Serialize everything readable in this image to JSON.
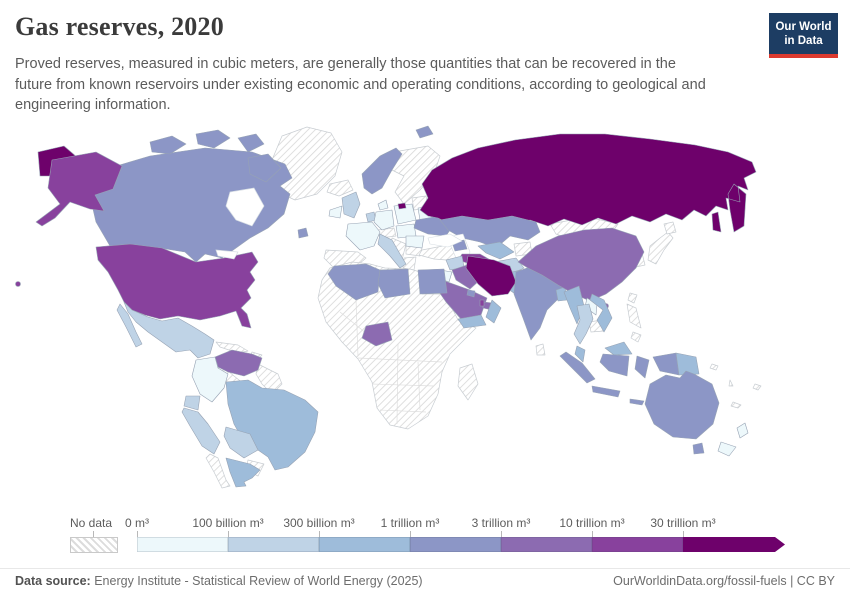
{
  "header": {
    "title": "Gas reserves, 2020",
    "subtitle": "Proved reserves, measured in cubic meters, are generally those quantities that can be recovered in the future from known reservoirs under existing economic and operating conditions, according to geological and engineering information.",
    "logo": {
      "line1": "Our World",
      "line2": "in Data",
      "bg": "#1d3d63",
      "stripe": "#dc3a2f"
    }
  },
  "legend": {
    "no_data_label": "No data",
    "bins": [
      {
        "label": "0 m³",
        "color": "#edf8fb"
      },
      {
        "label": "100 billion m³",
        "color": "#bfd3e6"
      },
      {
        "label": "300 billion m³",
        "color": "#9ebcda"
      },
      {
        "label": "1 trillion m³",
        "color": "#8c96c6"
      },
      {
        "label": "3 trillion m³",
        "color": "#8c6bb1"
      },
      {
        "label": "10 trillion m³",
        "color": "#88419d"
      },
      {
        "label": "30 trillion m³",
        "color": "#6e016b"
      }
    ]
  },
  "footer": {
    "source_label": "Data source:",
    "source_text": " Energy Institute - Statistical Review of World Energy (2025)",
    "right_text": "OurWorldinData.org/fossil-fuels | CC BY"
  },
  "chart_data": {
    "type": "choropleth-map",
    "title": "Gas reserves, 2020",
    "unit": "cubic meters",
    "no_data_style": "hatched",
    "bin_thresholds": [
      "0 m³",
      "100 billion m³",
      "300 billion m³",
      "1 trillion m³",
      "3 trillion m³",
      "10 trillion m³",
      "30 trillion m³"
    ],
    "countries": [
      {
        "id": "russia",
        "name": "Russia",
        "bin": 6
      },
      {
        "id": "iran",
        "name": "Iran",
        "bin": 6
      },
      {
        "id": "usa",
        "name": "United States",
        "bin": 5
      },
      {
        "id": "turkmenistan",
        "name": "Turkmenistan",
        "bin": 5
      },
      {
        "id": "qatar",
        "name": "Qatar",
        "bin": 5
      },
      {
        "id": "venezuela",
        "name": "Venezuela",
        "bin": 4
      },
      {
        "id": "china",
        "name": "China",
        "bin": 4
      },
      {
        "id": "saudi-arabia",
        "name": "Saudi Arabia",
        "bin": 4
      },
      {
        "id": "iraq",
        "name": "Iraq",
        "bin": 4
      },
      {
        "id": "uae",
        "name": "United Arab Emirates",
        "bin": 4
      },
      {
        "id": "nigeria",
        "name": "Nigeria",
        "bin": 4
      },
      {
        "id": "canada",
        "name": "Canada",
        "bin": 3
      },
      {
        "id": "norway",
        "name": "Norway",
        "bin": 3
      },
      {
        "id": "ukraine",
        "name": "Ukraine",
        "bin": 3
      },
      {
        "id": "kazakhstan",
        "name": "Kazakhstan",
        "bin": 3
      },
      {
        "id": "azerbaijan",
        "name": "Azerbaijan",
        "bin": 3
      },
      {
        "id": "kuwait",
        "name": "Kuwait",
        "bin": 3
      },
      {
        "id": "egypt",
        "name": "Egypt",
        "bin": 3
      },
      {
        "id": "algeria",
        "name": "Algeria",
        "bin": 3
      },
      {
        "id": "libya",
        "name": "Libya",
        "bin": 3
      },
      {
        "id": "india",
        "name": "India",
        "bin": 3
      },
      {
        "id": "indonesia",
        "name": "Indonesia",
        "bin": 3
      },
      {
        "id": "australia",
        "name": "Australia",
        "bin": 3
      },
      {
        "id": "brazil",
        "name": "Brazil",
        "bin": 2
      },
      {
        "id": "argentina",
        "name": "Argentina",
        "bin": 2
      },
      {
        "id": "uzbekistan",
        "name": "Uzbekistan",
        "bin": 2
      },
      {
        "id": "pakistan",
        "name": "Pakistan",
        "bin": 2
      },
      {
        "id": "oman",
        "name": "Oman",
        "bin": 2
      },
      {
        "id": "yemen",
        "name": "Yemen",
        "bin": 2
      },
      {
        "id": "myanmar",
        "name": "Myanmar",
        "bin": 2
      },
      {
        "id": "vietnam",
        "name": "Vietnam",
        "bin": 2
      },
      {
        "id": "malaysia",
        "name": "Malaysia",
        "bin": 2
      },
      {
        "id": "bangladesh",
        "name": "Bangladesh",
        "bin": 2
      },
      {
        "id": "papua-new-guinea",
        "name": "Papua New Guinea",
        "bin": 2
      },
      {
        "id": "mexico",
        "name": "Mexico",
        "bin": 1
      },
      {
        "id": "peru",
        "name": "Peru",
        "bin": 1
      },
      {
        "id": "bolivia",
        "name": "Bolivia",
        "bin": 1
      },
      {
        "id": "ecuador",
        "name": "Ecuador",
        "bin": 1
      },
      {
        "id": "united-kingdom",
        "name": "United Kingdom",
        "bin": 1
      },
      {
        "id": "netherlands",
        "name": "Netherlands",
        "bin": 1
      },
      {
        "id": "italy",
        "name": "Italy",
        "bin": 1
      },
      {
        "id": "syria",
        "name": "Syria",
        "bin": 1
      },
      {
        "id": "afghanistan",
        "name": "Afghanistan",
        "bin": 1
      },
      {
        "id": "thailand",
        "name": "Thailand",
        "bin": 1
      },
      {
        "id": "colombia",
        "name": "Colombia",
        "bin": 0
      },
      {
        "id": "ireland",
        "name": "Ireland",
        "bin": 0
      },
      {
        "id": "france",
        "name": "France",
        "bin": 0
      },
      {
        "id": "germany",
        "name": "Germany",
        "bin": 0
      },
      {
        "id": "denmark",
        "name": "Denmark",
        "bin": 0
      },
      {
        "id": "poland",
        "name": "Poland",
        "bin": 0
      },
      {
        "id": "central-europe",
        "name": "Czechia / Hungary",
        "bin": 0
      },
      {
        "id": "belarus",
        "name": "Belarus",
        "bin": 0
      },
      {
        "id": "romania",
        "name": "Romania",
        "bin": 0
      },
      {
        "id": "israel-jordan",
        "name": "Israel / Jordan",
        "bin": 0
      },
      {
        "id": "laos",
        "name": "Laos",
        "bin": 0
      },
      {
        "id": "new-zealand",
        "name": "New Zealand",
        "bin": 0
      },
      {
        "id": "greenland",
        "name": "Greenland",
        "bin": "no-data"
      },
      {
        "id": "iceland",
        "name": "Iceland",
        "bin": "no-data"
      },
      {
        "id": "sweden-finland",
        "name": "Sweden / Finland",
        "bin": "no-data"
      },
      {
        "id": "baltic-states",
        "name": "Baltic states",
        "bin": "no-data"
      },
      {
        "id": "spain-portugal",
        "name": "Spain / Portugal",
        "bin": "no-data"
      },
      {
        "id": "switzerland-austria",
        "name": "Switzerland / Austria",
        "bin": "no-data"
      },
      {
        "id": "balkans",
        "name": "Balkans",
        "bin": "no-data"
      },
      {
        "id": "bulgaria",
        "name": "Bulgaria",
        "bin": "no-data"
      },
      {
        "id": "greece",
        "name": "Greece",
        "bin": "no-data"
      },
      {
        "id": "turkey",
        "name": "Turkey",
        "bin": "no-data"
      },
      {
        "id": "kyrgyzstan-tajikistan",
        "name": "Kyrgyzstan / Tajikistan",
        "bin": "no-data"
      },
      {
        "id": "mongolia",
        "name": "Mongolia",
        "bin": "no-data"
      },
      {
        "id": "korea",
        "name": "Korea",
        "bin": "no-data"
      },
      {
        "id": "japan",
        "name": "Japan",
        "bin": "no-data"
      },
      {
        "id": "taiwan",
        "name": "Taiwan",
        "bin": "no-data"
      },
      {
        "id": "philippines",
        "name": "Philippines",
        "bin": "no-data"
      },
      {
        "id": "cambodia",
        "name": "Cambodia",
        "bin": "no-data"
      },
      {
        "id": "sri-lanka",
        "name": "Sri Lanka",
        "bin": "no-data"
      },
      {
        "id": "africa-other",
        "name": "Africa (other)",
        "bin": "no-data"
      },
      {
        "id": "madagascar",
        "name": "Madagascar",
        "bin": "no-data"
      },
      {
        "id": "central-america",
        "name": "Central America",
        "bin": "no-data"
      },
      {
        "id": "cuba",
        "name": "Cuba",
        "bin": "no-data"
      },
      {
        "id": "hispaniola",
        "name": "Hispaniola",
        "bin": "no-data"
      },
      {
        "id": "guyanas",
        "name": "Guyanas",
        "bin": "no-data"
      },
      {
        "id": "paraguay",
        "name": "Paraguay",
        "bin": "no-data"
      },
      {
        "id": "chile",
        "name": "Chile",
        "bin": "no-data"
      },
      {
        "id": "timor",
        "name": "Timor",
        "bin": "no-data"
      },
      {
        "id": "pacific-islands",
        "name": "Pacific islands",
        "bin": "no-data"
      }
    ]
  }
}
